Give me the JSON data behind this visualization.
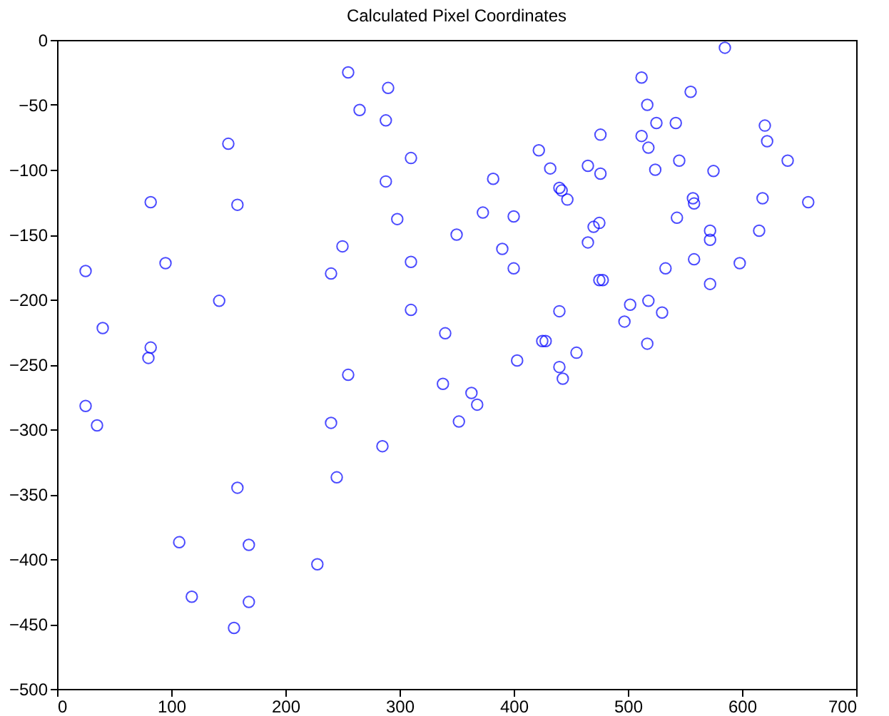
{
  "chart_data": {
    "type": "scatter",
    "title": "Calculated Pixel Coordinates",
    "marker": "circle",
    "grid": false,
    "xlim": [
      0,
      700
    ],
    "ylim": [
      -500,
      0
    ],
    "xticks": [
      0,
      100,
      200,
      300,
      400,
      500,
      600,
      700
    ],
    "yticks": [
      -500,
      -450,
      -400,
      -350,
      -300,
      -250,
      -200,
      -150,
      -100,
      -50,
      0
    ],
    "series": [
      {
        "color": "#0000ff",
        "x": [
          25,
          40,
          25,
          35,
          82,
          82,
          80,
          95,
          150,
          158,
          142,
          107,
          118,
          158,
          168,
          168,
          155,
          228,
          255,
          290,
          265,
          288,
          310,
          288,
          298,
          250,
          240,
          310,
          310,
          255,
          240,
          245,
          285,
          340,
          338,
          352,
          350,
          363,
          368,
          382,
          373,
          400,
          390,
          400,
          403,
          422,
          432,
          440,
          442,
          447,
          425,
          428,
          440,
          440,
          443,
          455,
          465,
          465,
          470,
          475,
          476,
          476,
          475,
          478,
          497,
          502,
          512,
          512,
          517,
          518,
          524,
          525,
          517,
          518,
          530,
          533,
          542,
          545,
          543,
          555,
          557,
          558,
          558,
          572,
          572,
          572,
          575,
          585,
          598,
          615,
          618,
          620,
          622,
          640,
          658
        ],
        "values": [
          -178,
          -222,
          -282,
          -297,
          -125,
          -237,
          -245,
          -172,
          -80,
          -127,
          -201,
          -387,
          -429,
          -345,
          -389,
          -433,
          -453,
          -404,
          -25,
          -37,
          -54,
          -62,
          -91,
          -109,
          -138,
          -159,
          -180,
          -171,
          -208,
          -258,
          -295,
          -337,
          -313,
          -226,
          -265,
          -294,
          -150,
          -272,
          -281,
          -107,
          -133,
          -136,
          -161,
          -176,
          -247,
          -85,
          -99,
          -114,
          -116,
          -123,
          -232,
          -232,
          -209,
          -252,
          -261,
          -241,
          -97,
          -156,
          -144,
          -141,
          -73,
          -103,
          -185,
          -185,
          -217,
          -204,
          -29,
          -74,
          -50,
          -83,
          -100,
          -64,
          -234,
          -201,
          -210,
          -176,
          -64,
          -93,
          -137,
          -40,
          -122,
          -126,
          -169,
          -147,
          -154,
          -188,
          -101,
          -6,
          -172,
          -147,
          -122,
          -66,
          -78,
          -93,
          -125
        ]
      }
    ]
  }
}
